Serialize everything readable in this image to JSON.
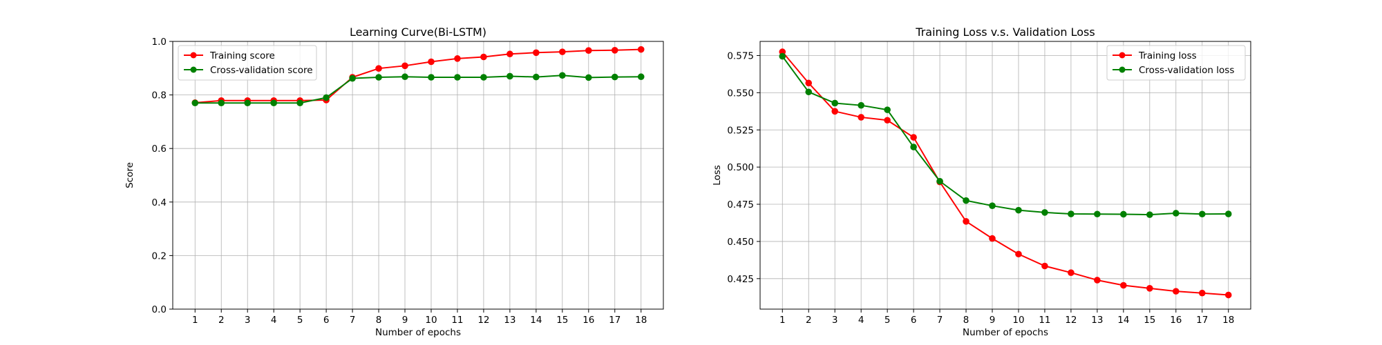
{
  "chart_data": [
    {
      "type": "line",
      "title": "Learning Curve(Bi-LSTM)",
      "xlabel": "Number of epochs",
      "ylabel": "Score",
      "x": [
        1,
        2,
        3,
        4,
        5,
        6,
        7,
        8,
        9,
        10,
        11,
        12,
        13,
        14,
        15,
        16,
        17,
        18
      ],
      "x_ticks": [
        "1",
        "2",
        "3",
        "4",
        "5",
        "6",
        "7",
        "8",
        "9",
        "10",
        "11",
        "12",
        "13",
        "14",
        "15",
        "16",
        "17",
        "18"
      ],
      "ylim": [
        0.0,
        1.0
      ],
      "y_ticks": [
        "0.0",
        "0.2",
        "0.4",
        "0.6",
        "0.8",
        "1.0"
      ],
      "grid": true,
      "legend_position": "upper-left",
      "series": [
        {
          "name": "Training score",
          "color": "#ff0000",
          "values": [
            0.771,
            0.779,
            0.779,
            0.779,
            0.779,
            0.781,
            0.866,
            0.899,
            0.909,
            0.924,
            0.936,
            0.942,
            0.953,
            0.958,
            0.961,
            0.966,
            0.967,
            0.97
          ]
        },
        {
          "name": "Cross-validation score",
          "color": "#008000",
          "values": [
            0.77,
            0.77,
            0.77,
            0.77,
            0.77,
            0.79,
            0.862,
            0.866,
            0.868,
            0.866,
            0.866,
            0.866,
            0.87,
            0.867,
            0.873,
            0.865,
            0.867,
            0.868
          ]
        }
      ]
    },
    {
      "type": "line",
      "title": "Training Loss v.s. Validation Loss",
      "xlabel": "Number of epochs",
      "ylabel": "Loss",
      "x": [
        1,
        2,
        3,
        4,
        5,
        6,
        7,
        8,
        9,
        10,
        11,
        12,
        13,
        14,
        15,
        16,
        17,
        18
      ],
      "x_ticks": [
        "1",
        "2",
        "3",
        "4",
        "5",
        "6",
        "7",
        "8",
        "9",
        "10",
        "11",
        "12",
        "13",
        "14",
        "15",
        "16",
        "17",
        "18"
      ],
      "ylim": [
        0.4045,
        0.5845
      ],
      "y_tick_values": [
        0.425,
        0.45,
        0.475,
        0.5,
        0.525,
        0.55,
        0.575
      ],
      "y_ticks": [
        "0.425",
        "0.450",
        "0.475",
        "0.500",
        "0.525",
        "0.550",
        "0.575"
      ],
      "grid": true,
      "legend_position": "upper-right",
      "series": [
        {
          "name": "Training loss",
          "color": "#ff0000",
          "values": [
            0.5775,
            0.5565,
            0.5375,
            0.5335,
            0.5315,
            0.52,
            0.49,
            0.4635,
            0.452,
            0.4415,
            0.4335,
            0.429,
            0.424,
            0.4205,
            0.4185,
            0.4165,
            0.4153,
            0.414
          ]
        },
        {
          "name": "Cross-validation loss",
          "color": "#008000",
          "values": [
            0.5745,
            0.5505,
            0.543,
            0.5415,
            0.5385,
            0.5135,
            0.4905,
            0.4775,
            0.474,
            0.471,
            0.4695,
            0.4685,
            0.4684,
            0.4683,
            0.468,
            0.469,
            0.4684,
            0.4685
          ]
        }
      ]
    }
  ]
}
